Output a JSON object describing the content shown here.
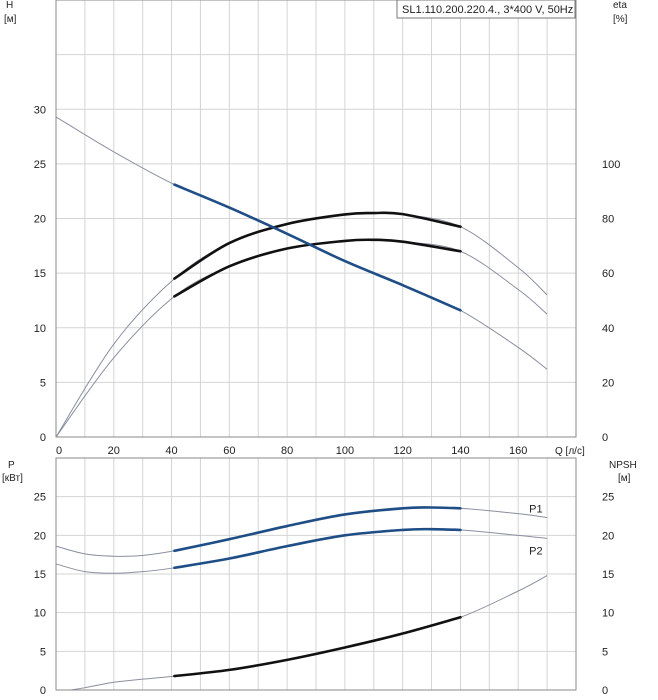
{
  "chart_data": [
    {
      "type": "line",
      "title": "SL1.110.200.220.4., 3*400 V, 50Hz",
      "xlabel": "Q [л/с]",
      "ylabel_left": "H",
      "ylabel_left_unit": "[м]",
      "ylabel_right": "eta",
      "ylabel_right_unit": "[%]",
      "xlim": [
        0,
        180
      ],
      "ylim": [
        0,
        40
      ],
      "ylim_right": [
        0,
        160
      ],
      "x_ticks": [
        0,
        20,
        40,
        60,
        80,
        100,
        120,
        140,
        160
      ],
      "x_tick_labels": [
        "0",
        "20",
        "40",
        "60",
        "80",
        "100",
        "120",
        "140",
        "160"
      ],
      "y_ticks": [
        0,
        5,
        10,
        15,
        20,
        25,
        30
      ],
      "y_tick_labels": [
        "0",
        "5",
        "10",
        "15",
        "20",
        "25",
        "30"
      ],
      "y_right_ticks": [
        0,
        20,
        40,
        60,
        80,
        100
      ],
      "y_right_tick_labels": [
        "0",
        "20",
        "40",
        "60",
        "80",
        "100"
      ],
      "grid": true,
      "legend": "top-right",
      "series": [
        {
          "axis": "left",
          "color": "#1f4e86",
          "operating_range": [
            41,
            140
          ],
          "x": [
            0,
            20,
            41,
            60,
            80,
            100,
            120,
            140,
            160,
            170
          ],
          "y": [
            29.3,
            26.1,
            23.1,
            21.0,
            18.6,
            16.1,
            13.9,
            11.6,
            8.2,
            6.2
          ]
        },
        {
          "axis": "right",
          "color": "#111111",
          "operating_range": [
            41,
            140
          ],
          "x": [
            0,
            20,
            41,
            60,
            80,
            100,
            110,
            120,
            140,
            160,
            170
          ],
          "y": [
            0,
            34,
            58,
            71,
            78,
            81.5,
            82,
            81.6,
            77,
            62,
            52
          ]
        },
        {
          "axis": "right",
          "color": "#111111",
          "operating_range": [
            41,
            140
          ],
          "x": [
            0,
            20,
            41,
            60,
            80,
            100,
            110,
            120,
            140,
            160,
            170
          ],
          "y": [
            0,
            29,
            51.5,
            62.5,
            69,
            71.8,
            72.2,
            71.5,
            68,
            54,
            45
          ]
        }
      ]
    },
    {
      "type": "line",
      "ylabel_left": "P",
      "ylabel_left_unit": "[кВт]",
      "ylabel_right": "NPSH",
      "ylabel_right_unit": "[м]",
      "xlim": [
        0,
        180
      ],
      "ylim": [
        0,
        30
      ],
      "y_ticks": [
        0,
        5,
        10,
        15,
        20,
        25
      ],
      "y_tick_labels": [
        "0",
        "5",
        "10",
        "15",
        "20",
        "25"
      ],
      "y_right_ticks": [
        0,
        5,
        10,
        15,
        20,
        25
      ],
      "y_right_tick_labels": [
        "0",
        "5",
        "10",
        "15",
        "20",
        "25"
      ],
      "grid": true,
      "series": [
        {
          "name": "P1",
          "axis": "left",
          "color": "#1f4e86",
          "operating_range": [
            41,
            140
          ],
          "x": [
            0,
            10,
            20,
            30,
            41,
            60,
            80,
            100,
            120,
            130,
            140,
            160,
            170
          ],
          "y": [
            18.6,
            17.6,
            17.3,
            17.4,
            18.0,
            19.5,
            21.2,
            22.7,
            23.5,
            23.6,
            23.5,
            22.8,
            22.3
          ]
        },
        {
          "name": "P2",
          "axis": "left",
          "color": "#1f4e86",
          "operating_range": [
            41,
            140
          ],
          "x": [
            0,
            10,
            20,
            30,
            41,
            60,
            80,
            100,
            120,
            130,
            140,
            160,
            170
          ],
          "y": [
            16.3,
            15.3,
            15.1,
            15.3,
            15.8,
            17.0,
            18.6,
            20.0,
            20.7,
            20.8,
            20.7,
            20.0,
            19.6
          ]
        },
        {
          "axis": "right",
          "color": "#111111",
          "operating_range": [
            41,
            140
          ],
          "x": [
            5,
            10,
            20,
            30,
            41,
            60,
            80,
            100,
            120,
            140,
            160,
            170
          ],
          "y": [
            0,
            0.3,
            1.0,
            1.4,
            1.8,
            2.6,
            3.9,
            5.5,
            7.3,
            9.4,
            12.8,
            14.8
          ]
        }
      ]
    }
  ]
}
